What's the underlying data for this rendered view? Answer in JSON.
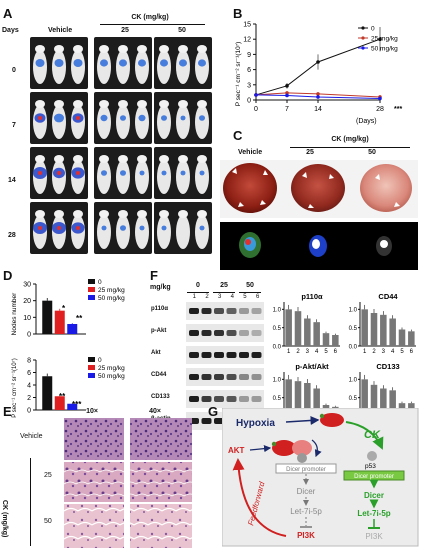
{
  "panels": {
    "A": "A",
    "B": "B",
    "C": "C",
    "D": "D",
    "E": "E",
    "F": "F",
    "G": "G"
  },
  "panel_a": {
    "days_label": "Days",
    "vehicle": "Vehicle",
    "ck_header": "CK (mg/kg)",
    "doses": [
      "25",
      "50"
    ],
    "days": [
      "0",
      "7",
      "14",
      "28"
    ]
  },
  "panel_b": {
    "ylabel": "P sec⁻¹ cm⁻² sr⁻¹(10⁷)",
    "xlabel_suffix": "(Days)",
    "legend": [
      "0",
      "25 mg/kg",
      "50 mg/kg"
    ],
    "sig": "***"
  },
  "panel_c": {
    "vehicle": "Vehicle",
    "ck_header": "CK (mg/kg)",
    "doses": [
      "25",
      "50"
    ]
  },
  "panel_d": {
    "legend": [
      "0",
      "25 mg/kg",
      "50 mg/kg"
    ],
    "top_sig": [
      "*",
      "**"
    ],
    "bottom_sig": [
      "**",
      "***"
    ]
  },
  "panel_e": {
    "mag": [
      "10×",
      "40×"
    ],
    "vehicle": "Vehicle",
    "ck_label": "CK (mg/kg)",
    "doses": [
      "25",
      "50"
    ]
  },
  "panel_f": {
    "mgkg": "mg/kg",
    "doses": [
      "0",
      "25",
      "50"
    ],
    "lanes": [
      "1",
      "2",
      "3",
      "4",
      "5",
      "6"
    ],
    "blots": [
      "p110α",
      "p-Akt",
      "Akt",
      "CD44",
      "CD133",
      "β-actin"
    ]
  },
  "panel_g": {
    "hypoxia": "Hypoxia",
    "ck": "CK",
    "akt": "AKT",
    "p53": "p53",
    "dicer_promoter": "Dicer promoter",
    "dicer": "Dicer",
    "let7": "Let-7i-5p",
    "pi3k": "PI3K",
    "feedforward": "Feedforward"
  },
  "chart_data": [
    {
      "type": "line",
      "id": "B",
      "title": "",
      "ylabel": "P sec⁻¹ cm⁻² sr⁻¹(10⁷)",
      "xlabel": "(Days)",
      "x": [
        0,
        7,
        14,
        28
      ],
      "xticks": [
        "0",
        "7",
        "14",
        "28"
      ],
      "ylim": [
        0,
        15
      ],
      "yticks": [
        0,
        3,
        6,
        9,
        12,
        15
      ],
      "series": [
        {
          "name": "0",
          "values": [
            1.0,
            2.8,
            7.5,
            12.0
          ],
          "color": "#111111"
        },
        {
          "name": "25 mg/kg",
          "values": [
            1.0,
            1.4,
            1.2,
            0.6
          ],
          "color": "#c0392b"
        },
        {
          "name": "50 mg/kg",
          "values": [
            1.0,
            0.9,
            0.6,
            0.3
          ],
          "color": "#1a1ae6"
        }
      ]
    },
    {
      "type": "bar",
      "id": "D-top",
      "ylabel": "Nodes number",
      "ylim": [
        0,
        30
      ],
      "yticks": [
        0,
        10,
        20,
        30
      ],
      "categories": [
        "0",
        "25 mg/kg",
        "50 mg/kg"
      ],
      "values": [
        20,
        14,
        6
      ],
      "colors": [
        "#111111",
        "#e02020",
        "#1a1ae6"
      ]
    },
    {
      "type": "bar",
      "id": "D-bottom",
      "ylabel": "P sec⁻¹ cm⁻² sr⁻¹(10⁷)",
      "ylim": [
        0,
        8
      ],
      "yticks": [
        0,
        2,
        4,
        6,
        8
      ],
      "categories": [
        "0",
        "25 mg/kg",
        "50 mg/kg"
      ],
      "values": [
        5.4,
        2.2,
        1.0
      ],
      "colors": [
        "#111111",
        "#e02020",
        "#1a1ae6"
      ]
    },
    {
      "type": "bar",
      "id": "F-p110a",
      "title": "p110α",
      "ylim": [
        0,
        1.2
      ],
      "yticks": [
        0.0,
        0.5,
        1.0
      ],
      "categories": [
        "1",
        "2",
        "3",
        "4",
        "5",
        "6"
      ],
      "values": [
        1.0,
        0.95,
        0.75,
        0.65,
        0.35,
        0.3
      ]
    },
    {
      "type": "bar",
      "id": "F-CD44",
      "title": "CD44",
      "ylim": [
        0,
        1.2
      ],
      "yticks": [
        0.0,
        0.5,
        1.0
      ],
      "categories": [
        "1",
        "2",
        "3",
        "4",
        "5",
        "6"
      ],
      "values": [
        1.0,
        0.9,
        0.85,
        0.75,
        0.45,
        0.4
      ]
    },
    {
      "type": "bar",
      "id": "F-pAkt",
      "title": "p-Akt/Akt",
      "ylim": [
        0,
        1.2
      ],
      "yticks": [
        0.0,
        0.5,
        1.0
      ],
      "categories": [
        "1",
        "2",
        "3",
        "4",
        "5",
        "6"
      ],
      "values": [
        1.0,
        0.95,
        0.9,
        0.75,
        0.3,
        0.25
      ]
    },
    {
      "type": "bar",
      "id": "F-CD133",
      "title": "CD133",
      "ylim": [
        0,
        1.2
      ],
      "yticks": [
        0.0,
        0.5,
        1.0
      ],
      "categories": [
        "1",
        "2",
        "3",
        "4",
        "5",
        "6"
      ],
      "values": [
        1.0,
        0.85,
        0.75,
        0.7,
        0.35,
        0.35
      ]
    }
  ]
}
